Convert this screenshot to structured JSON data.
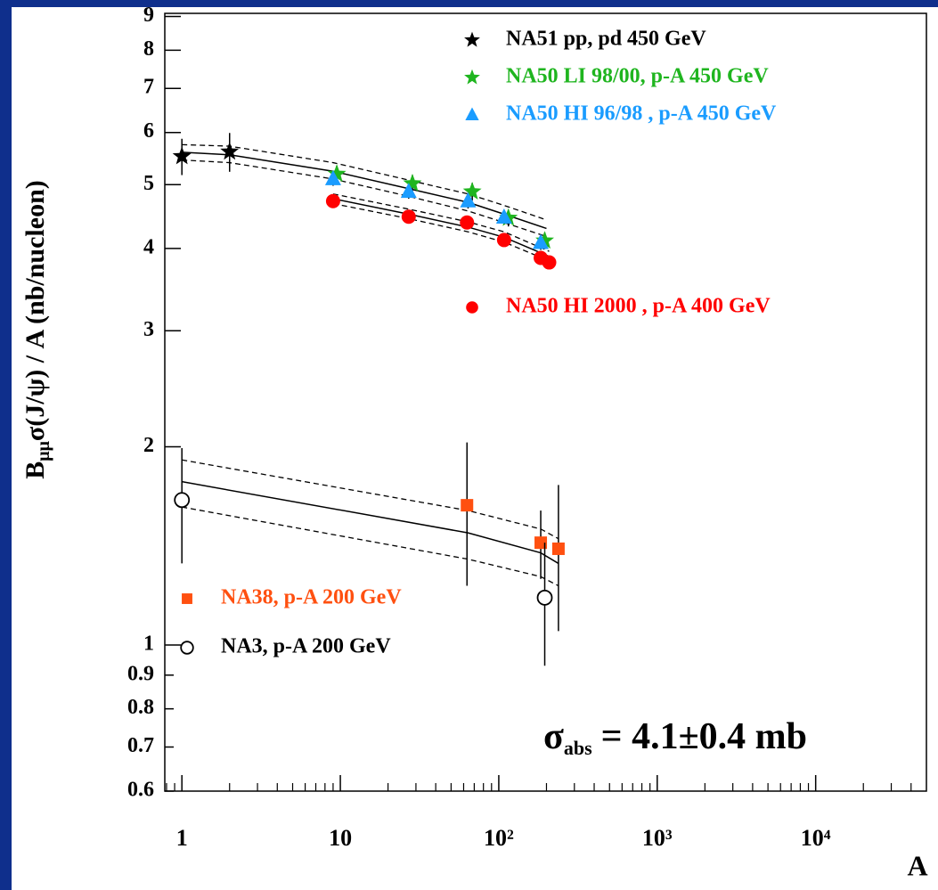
{
  "chart_data": {
    "type": "scatter",
    "x_label": "A",
    "y_label": {
      "main": "B",
      "subscript": "μμ",
      "rest": "σ(J/ψ) / A (nb/nucleon)"
    },
    "annotation": {
      "symbol": "σ",
      "subscript": "abs",
      "text": "= 4.1±0.4 mb"
    },
    "x_log": true,
    "y_log": true,
    "xlim": [
      0.78,
      50000
    ],
    "ylim": [
      0.6,
      9.1
    ],
    "xticks": [
      1,
      10,
      {
        "value": 100,
        "label": "10²"
      },
      {
        "value": 1000,
        "label": "10³"
      },
      {
        "value": 10000,
        "label": "10⁴"
      }
    ],
    "yticks": [
      0.6,
      0.7,
      0.8,
      0.9,
      1,
      2,
      3,
      4,
      5,
      6,
      7,
      8,
      9
    ],
    "minor_ticks": true,
    "series": [
      {
        "name": "NA51 pp, pd 450 GeV",
        "color": "#000000",
        "marker": "star",
        "x": [
          1,
          2
        ],
        "values": [
          5.52,
          5.61
        ],
        "errors": [
          0.35,
          0.38
        ]
      },
      {
        "name": "NA50 LI 98/00, p-A 450 GeV",
        "color": "#1fb51f",
        "marker": "star",
        "x": [
          9.5,
          28.5,
          68,
          115,
          195
        ],
        "values": [
          5.19,
          5.02,
          4.88,
          4.45,
          4.11
        ],
        "errors": [
          0.15,
          0.15,
          0.15,
          0.13,
          0.12
        ]
      },
      {
        "name": "NA50 HI 96/98 , p-A 450 GeV",
        "color": "#1a9cff",
        "marker": "triangle",
        "x": [
          9,
          27,
          64,
          108,
          184
        ],
        "values": [
          5.1,
          4.88,
          4.72,
          4.46,
          4.08
        ],
        "errors": [
          0.12,
          0.12,
          0.12,
          0.1,
          0.1
        ]
      },
      {
        "name": "NA50 HI 2000 , p-A 400 GeV",
        "color": "#ff0000",
        "marker": "circle",
        "x": [
          9,
          27,
          63,
          108,
          184,
          208
        ],
        "values": [
          4.72,
          4.47,
          4.38,
          4.12,
          3.87,
          3.81
        ],
        "errors": [
          0.08,
          0.08,
          0.08,
          0.08,
          0.08,
          0.08
        ]
      },
      {
        "name": "NA38, p-A 200 GeV",
        "color": "#ff5010",
        "marker": "square",
        "x": [
          63,
          184,
          238
        ],
        "values": [
          1.63,
          1.43,
          1.4
        ],
        "errors": [
          0.4,
          0.17,
          0.35
        ]
      },
      {
        "name": "NA3, p-A 200 GeV",
        "color": "#000000",
        "marker": "open-circle",
        "x": [
          1,
          195
        ],
        "values": [
          1.66,
          1.18
        ],
        "errors": [
          0.33,
          0.25
        ]
      }
    ],
    "fits": [
      {
        "x": [
          1,
          2,
          9,
          27,
          64,
          108,
          200
        ],
        "values": [
          5.6,
          5.55,
          5.24,
          4.93,
          4.7,
          4.51,
          4.29
        ],
        "upper": [
          5.75,
          5.72,
          5.4,
          5.08,
          4.84,
          4.65,
          4.42
        ],
        "lower": [
          5.45,
          5.4,
          5.1,
          4.8,
          4.56,
          4.38,
          4.17
        ]
      },
      {
        "x": [
          9,
          27,
          64,
          108,
          208
        ],
        "values": [
          4.76,
          4.51,
          4.31,
          4.16,
          3.89
        ],
        "upper": [
          4.84,
          4.59,
          4.39,
          4.24,
          3.96
        ],
        "lower": [
          4.68,
          4.44,
          4.24,
          4.09,
          3.83
        ]
      },
      {
        "x": [
          1,
          64,
          184,
          238
        ],
        "values": [
          1.77,
          1.48,
          1.38,
          1.33
        ],
        "upper": [
          1.91,
          1.6,
          1.5,
          1.45
        ],
        "lower": [
          1.62,
          1.35,
          1.27,
          1.23
        ]
      }
    ]
  }
}
